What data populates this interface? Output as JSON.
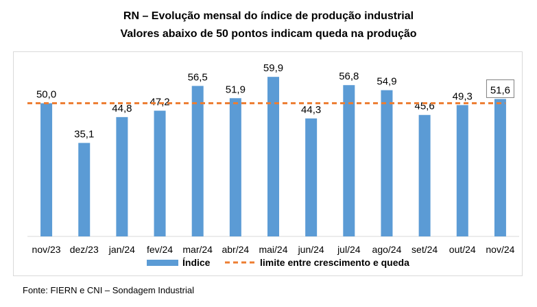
{
  "chart_data": {
    "type": "bar",
    "title": "RN – Evolução mensal do índice de produção industrial",
    "subtitle": "Valores abaixo de 50 pontos indicam queda na produção",
    "categories": [
      "nov/23",
      "dez/23",
      "jan/24",
      "fev/24",
      "mar/24",
      "abr/24",
      "mai/24",
      "jun/24",
      "jul/24",
      "ago/24",
      "set/24",
      "out/24",
      "nov/24"
    ],
    "series": [
      {
        "name": "Índice",
        "values": [
          50.0,
          35.1,
          44.8,
          47.2,
          56.5,
          51.9,
          59.9,
          44.3,
          56.8,
          54.9,
          45.6,
          49.3,
          51.6
        ],
        "labels": [
          "50,0",
          "35,1",
          "44,8",
          "47,2",
          "56,5",
          "51,9",
          "59,9",
          "44,3",
          "56,8",
          "54,9",
          "45,6",
          "49,3",
          "51,6"
        ],
        "color": "#5b9bd5"
      }
    ],
    "reference_line": {
      "name": "limite entre crescimento e queda",
      "value": 50,
      "color": "#ed7d31",
      "style": "dashed"
    },
    "highlighted_label_index": 12,
    "ylim": [
      0,
      62
    ],
    "grid": false,
    "legend": "bottom",
    "xlabel": "",
    "ylabel": ""
  },
  "source": "Fonte: FIERN e CNI – Sondagem Industrial"
}
